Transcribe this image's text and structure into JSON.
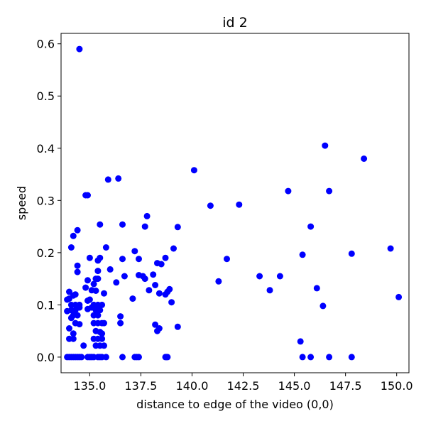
{
  "chart_data": {
    "type": "scatter",
    "title": "id 2",
    "xlabel": "distance to edge of the video (0,0)",
    "ylabel": "speed",
    "xlim": [
      133.6,
      150.6
    ],
    "ylim": [
      -0.03,
      0.62
    ],
    "x_ticks": [
      135.0,
      137.5,
      140.0,
      142.5,
      145.0,
      147.5,
      150.0
    ],
    "x_tick_labels": [
      "135.0",
      "137.5",
      "140.0",
      "142.5",
      "145.0",
      "147.5",
      "150.0"
    ],
    "y_ticks": [
      0.0,
      0.1,
      0.2,
      0.3,
      0.4,
      0.5,
      0.6
    ],
    "y_tick_labels": [
      "0.0",
      "0.1",
      "0.2",
      "0.3",
      "0.4",
      "0.5",
      "0.6"
    ],
    "grid": false,
    "marker_color": "#0000ff",
    "points": [
      [
        134.5,
        0.59
      ],
      [
        134.2,
        0.232
      ],
      [
        134.4,
        0.243
      ],
      [
        134.1,
        0.21
      ],
      [
        134.4,
        0.175
      ],
      [
        134.4,
        0.163
      ],
      [
        134.0,
        0.125
      ],
      [
        134.2,
        0.118
      ],
      [
        134.3,
        0.12
      ],
      [
        134.0,
        0.112
      ],
      [
        133.9,
        0.11
      ],
      [
        134.1,
        0.1
      ],
      [
        134.3,
        0.1
      ],
      [
        134.5,
        0.1
      ],
      [
        133.9,
        0.088
      ],
      [
        134.1,
        0.09
      ],
      [
        134.3,
        0.09
      ],
      [
        134.5,
        0.095
      ],
      [
        134.2,
        0.08
      ],
      [
        134.4,
        0.08
      ],
      [
        134.1,
        0.075
      ],
      [
        134.3,
        0.065
      ],
      [
        134.5,
        0.063
      ],
      [
        134.0,
        0.055
      ],
      [
        134.2,
        0.045
      ],
      [
        134.0,
        0.035
      ],
      [
        134.2,
        0.035
      ],
      [
        134.7,
        0.022
      ],
      [
        134.8,
        0.31
      ],
      [
        134.9,
        0.31
      ],
      [
        134.9,
        0.147
      ],
      [
        134.8,
        0.133
      ],
      [
        134.9,
        0.108
      ],
      [
        134.9,
        0.092
      ],
      [
        135.0,
        0.19
      ],
      [
        135.2,
        0.14
      ],
      [
        135.3,
        0.15
      ],
      [
        135.4,
        0.15
      ],
      [
        135.1,
        0.128
      ],
      [
        135.3,
        0.127
      ],
      [
        135.0,
        0.11
      ],
      [
        135.2,
        0.1
      ],
      [
        135.4,
        0.1
      ],
      [
        135.1,
        0.095
      ],
      [
        135.3,
        0.09
      ],
      [
        135.5,
        0.09
      ],
      [
        135.2,
        0.08
      ],
      [
        135.4,
        0.08
      ],
      [
        135.2,
        0.065
      ],
      [
        135.4,
        0.065
      ],
      [
        135.6,
        0.065
      ],
      [
        135.3,
        0.05
      ],
      [
        135.5,
        0.048
      ],
      [
        135.2,
        0.035
      ],
      [
        135.4,
        0.035
      ],
      [
        135.6,
        0.035
      ],
      [
        135.3,
        0.022
      ],
      [
        135.5,
        0.022
      ],
      [
        135.7,
        0.022
      ],
      [
        135.4,
        0.185
      ],
      [
        135.5,
        0.19
      ],
      [
        135.4,
        0.165
      ],
      [
        135.5,
        0.254
      ],
      [
        135.8,
        0.21
      ],
      [
        135.7,
        0.122
      ],
      [
        135.6,
        0.1
      ],
      [
        135.7,
        0.065
      ],
      [
        135.6,
        0.045
      ],
      [
        135.9,
        0.34
      ],
      [
        136.0,
        0.168
      ],
      [
        136.3,
        0.143
      ],
      [
        136.4,
        0.342
      ],
      [
        136.6,
        0.254
      ],
      [
        136.6,
        0.188
      ],
      [
        136.7,
        0.155
      ],
      [
        136.5,
        0.078
      ],
      [
        136.5,
        0.065
      ],
      [
        137.2,
        0.203
      ],
      [
        137.4,
        0.188
      ],
      [
        137.1,
        0.112
      ],
      [
        137.4,
        0.157
      ],
      [
        137.6,
        0.155
      ],
      [
        137.8,
        0.27
      ],
      [
        137.7,
        0.25
      ],
      [
        137.7,
        0.15
      ],
      [
        137.9,
        0.128
      ],
      [
        138.1,
        0.158
      ],
      [
        138.3,
        0.18
      ],
      [
        138.2,
        0.138
      ],
      [
        138.4,
        0.122
      ],
      [
        138.2,
        0.062
      ],
      [
        138.3,
        0.05
      ],
      [
        138.4,
        0.055
      ],
      [
        138.5,
        0.178
      ],
      [
        138.7,
        0.19
      ],
      [
        138.8,
        0.125
      ],
      [
        138.9,
        0.13
      ],
      [
        138.7,
        0.12
      ],
      [
        139.1,
        0.208
      ],
      [
        139.0,
        0.105
      ],
      [
        139.3,
        0.249
      ],
      [
        139.3,
        0.058
      ],
      [
        140.1,
        0.358
      ],
      [
        140.9,
        0.29
      ],
      [
        141.3,
        0.145
      ],
      [
        141.7,
        0.188
      ],
      [
        142.3,
        0.292
      ],
      [
        143.3,
        0.155
      ],
      [
        143.8,
        0.128
      ],
      [
        144.3,
        0.155
      ],
      [
        144.7,
        0.318
      ],
      [
        145.3,
        0.03
      ],
      [
        145.4,
        0.196
      ],
      [
        145.8,
        0.25
      ],
      [
        146.1,
        0.132
      ],
      [
        146.4,
        0.098
      ],
      [
        146.5,
        0.405
      ],
      [
        146.7,
        0.318
      ],
      [
        147.8,
        0.198
      ],
      [
        148.4,
        0.38
      ],
      [
        149.7,
        0.208
      ],
      [
        150.1,
        0.115
      ],
      [
        133.9,
        0.0
      ],
      [
        134.0,
        0.0
      ],
      [
        134.1,
        0.0
      ],
      [
        134.2,
        0.0
      ],
      [
        134.3,
        0.0
      ],
      [
        134.4,
        0.0
      ],
      [
        134.5,
        0.0
      ],
      [
        134.6,
        0.0
      ],
      [
        134.9,
        0.0
      ],
      [
        135.0,
        0.0
      ],
      [
        135.1,
        0.0
      ],
      [
        135.2,
        0.0
      ],
      [
        135.4,
        0.0
      ],
      [
        135.5,
        0.0
      ],
      [
        135.6,
        0.0
      ],
      [
        135.8,
        0.0
      ],
      [
        136.6,
        0.0
      ],
      [
        137.2,
        0.0
      ],
      [
        137.3,
        0.0
      ],
      [
        137.4,
        0.0
      ],
      [
        138.7,
        0.0
      ],
      [
        138.75,
        0.0
      ],
      [
        138.8,
        0.0
      ],
      [
        145.4,
        0.0
      ],
      [
        145.8,
        0.0
      ],
      [
        146.7,
        0.0
      ],
      [
        147.8,
        0.0
      ]
    ]
  }
}
